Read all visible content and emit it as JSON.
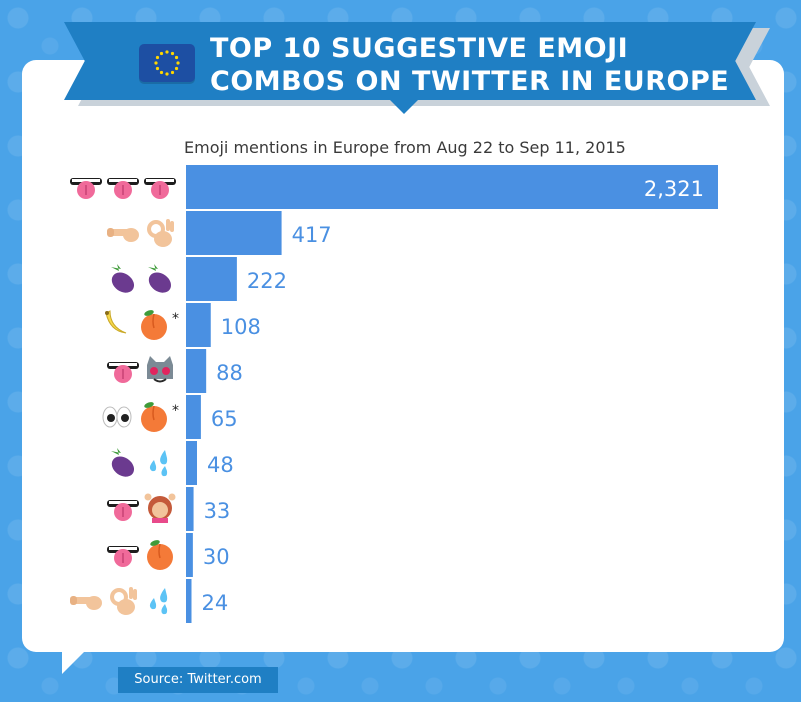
{
  "header": {
    "title_line1": "TOP 10 SUGGESTIVE EMOJI",
    "title_line2": "COMBOS ON TWITTER IN EUROPE",
    "flag_icon": "eu-flag-icon"
  },
  "colors": {
    "background": "#4aa3e8",
    "banner": "#1f7fc4",
    "bar": "#4a90e2",
    "value_label": "#4a90e2",
    "value_label_inside": "#ffffff"
  },
  "chart_data": {
    "type": "bar",
    "orientation": "horizontal",
    "subtitle": "Emoji mentions in Europe from Aug 22 to Sep 11, 2015",
    "categories": [
      "tongue tongue tongue",
      "pointing-finger ok-hand",
      "eggplant eggplant",
      "banana peach *",
      "tongue heart-eyes-cat",
      "eyes peach *",
      "eggplant sweat-droplets",
      "tongue raising-hands-woman",
      "tongue peach",
      "pointing-finger ok-hand sweat-droplets"
    ],
    "category_icons": [
      [
        "tongue-icon",
        "tongue-icon",
        "tongue-icon"
      ],
      [
        "pointing-finger-icon",
        "ok-hand-icon"
      ],
      [
        "eggplant-icon",
        "eggplant-icon"
      ],
      [
        "banana-icon",
        "peach-icon",
        "asterisk"
      ],
      [
        "tongue-icon",
        "heart-eyes-cat-icon"
      ],
      [
        "eyes-icon",
        "peach-icon",
        "asterisk"
      ],
      [
        "eggplant-icon",
        "sweat-droplets-icon"
      ],
      [
        "tongue-icon",
        "raising-hands-woman-icon"
      ],
      [
        "tongue-icon",
        "peach-icon"
      ],
      [
        "pointing-finger-icon",
        "ok-hand-icon",
        "sweat-droplets-icon"
      ]
    ],
    "values": [
      2321,
      417,
      222,
      108,
      88,
      65,
      48,
      33,
      30,
      24
    ],
    "value_labels": [
      "2,321",
      "417",
      "222",
      "108",
      "88",
      "65",
      "48",
      "33",
      "30",
      "24"
    ],
    "xlim": [
      0,
      2321
    ],
    "grid": false,
    "legend": "none"
  },
  "footer": {
    "source": "Source: Twitter.com"
  }
}
